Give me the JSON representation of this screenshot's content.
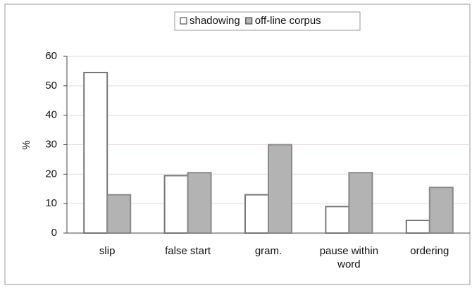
{
  "chart_data": {
    "type": "bar",
    "categories": [
      "slip",
      "false start",
      "gram.",
      "pause within word",
      "ordering"
    ],
    "series": [
      {
        "name": "shadowing",
        "color": "#ffffff",
        "values": [
          54.5,
          19.5,
          13,
          9,
          4.3
        ]
      },
      {
        "name": "off-line corpus",
        "color": "#b3b3b3",
        "values": [
          13,
          20.5,
          30,
          20.5,
          15.5
        ]
      }
    ],
    "ylabel": "%",
    "ylim": [
      0,
      60
    ],
    "yticks": [
      0,
      10,
      20,
      30,
      40,
      50,
      60
    ],
    "grid": true,
    "legend": "top"
  }
}
